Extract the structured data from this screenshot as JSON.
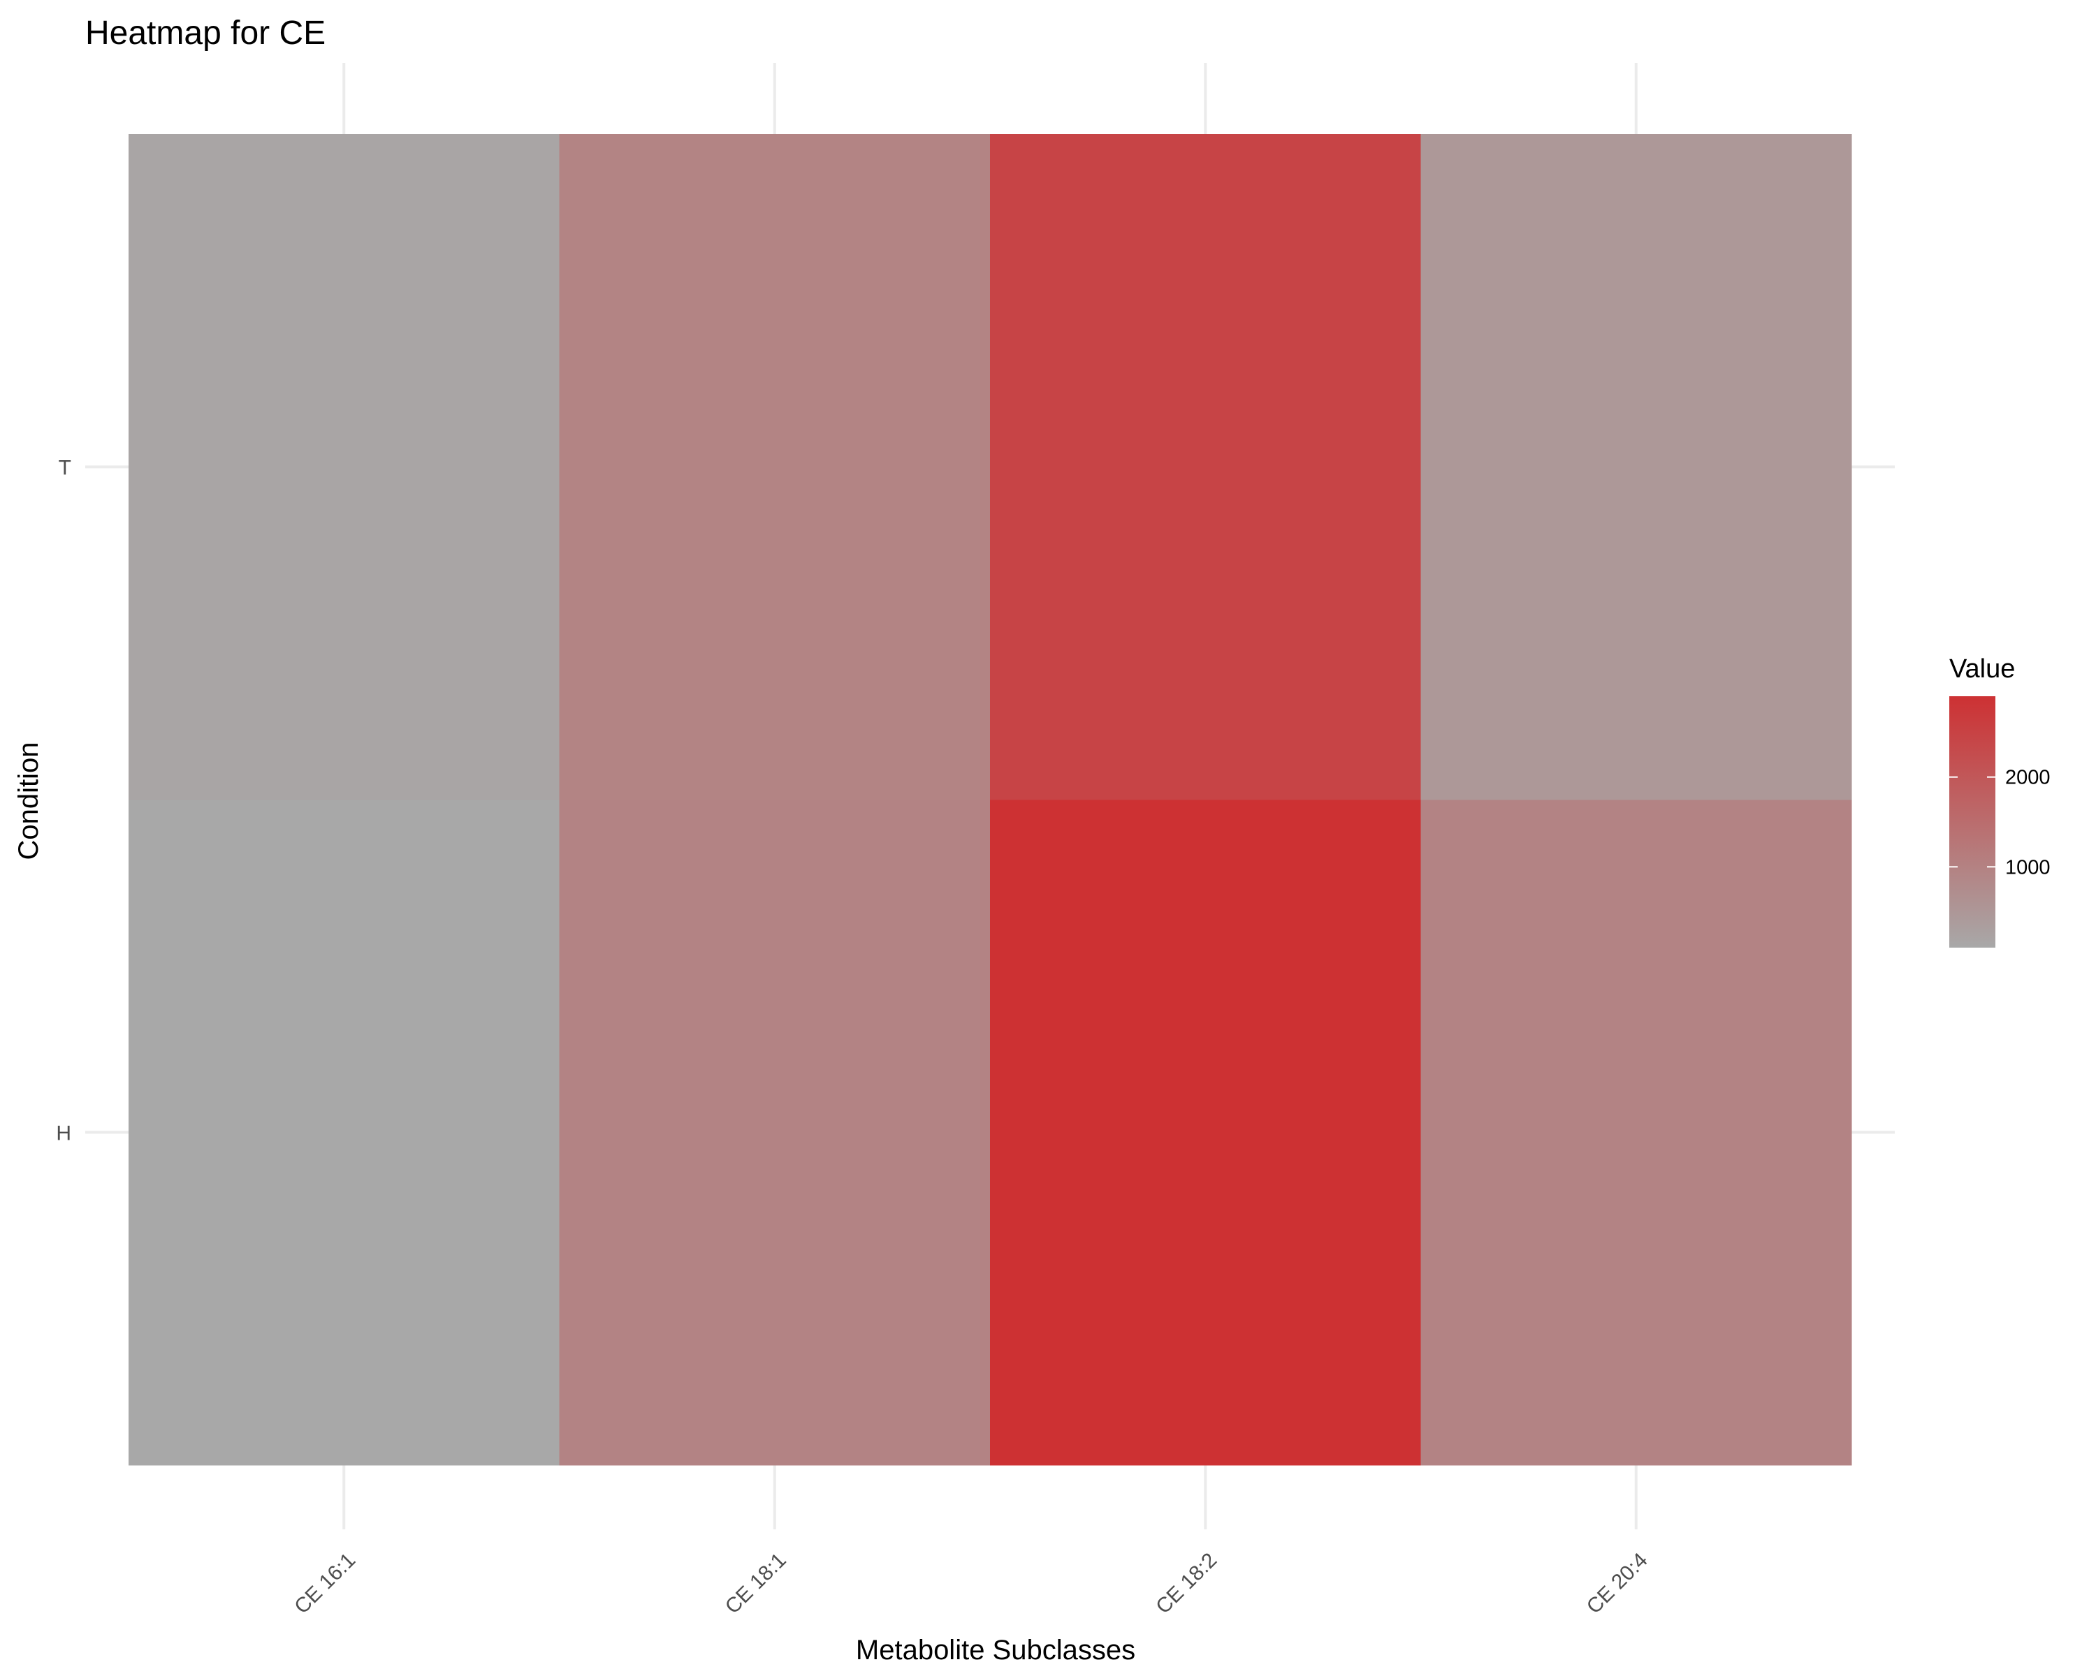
{
  "chart_data": {
    "type": "heatmap",
    "title": "Heatmap for CE",
    "xlabel": "Metabolite Subclasses",
    "ylabel": "Condition",
    "x_categories": [
      "CE 16:1",
      "CE 18:1",
      "CE 18:2",
      "CE 20:4"
    ],
    "y_categories": [
      "H",
      "T"
    ],
    "values": [
      {
        "x": "CE 16:1",
        "y": "H",
        "value": 100
      },
      {
        "x": "CE 18:1",
        "y": "H",
        "value": 960
      },
      {
        "x": "CE 18:2",
        "y": "H",
        "value": 2900
      },
      {
        "x": "CE 20:4",
        "y": "H",
        "value": 970
      },
      {
        "x": "CE 16:1",
        "y": "T",
        "value": 160
      },
      {
        "x": "CE 18:1",
        "y": "T",
        "value": 950
      },
      {
        "x": "CE 18:2",
        "y": "T",
        "value": 2450
      },
      {
        "x": "CE 20:4",
        "y": "T",
        "value": 480
      }
    ],
    "legend": {
      "title": "Value",
      "ticks": [
        1000,
        2000
      ],
      "range": [
        100,
        2900
      ],
      "low_color": "#a8a8a8",
      "high_color": "#cd3133",
      "placement": "right"
    },
    "grid": true
  }
}
